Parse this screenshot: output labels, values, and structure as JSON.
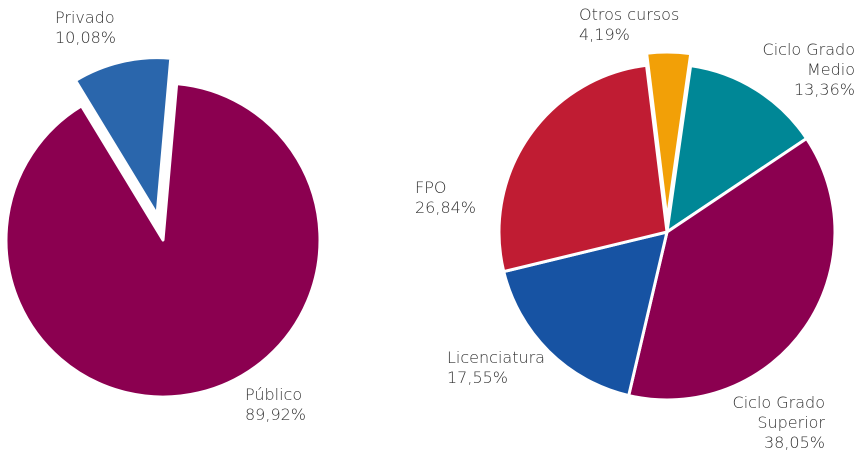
{
  "chart_data": [
    {
      "type": "pie",
      "categories": [
        "Público",
        "Privado"
      ],
      "values": [
        89.92,
        10.08
      ],
      "value_labels": [
        "89,92%",
        "10,08%"
      ],
      "colors": [
        "#8b0050",
        "#2a66ac"
      ]
    },
    {
      "type": "pie",
      "categories": [
        "Otros cursos",
        "Ciclo Grado Medio",
        "Ciclo Grado Superior",
        "Licenciatura",
        "FPO"
      ],
      "values": [
        4.19,
        13.36,
        38.05,
        17.55,
        26.84
      ],
      "value_labels": [
        "4,19%",
        "13,36%",
        "38,05%",
        "17,55%",
        "26,84%"
      ],
      "colors": [
        "#f2a007",
        "#008796",
        "#8b0050",
        "#1753a3",
        "#c01c33"
      ]
    }
  ]
}
